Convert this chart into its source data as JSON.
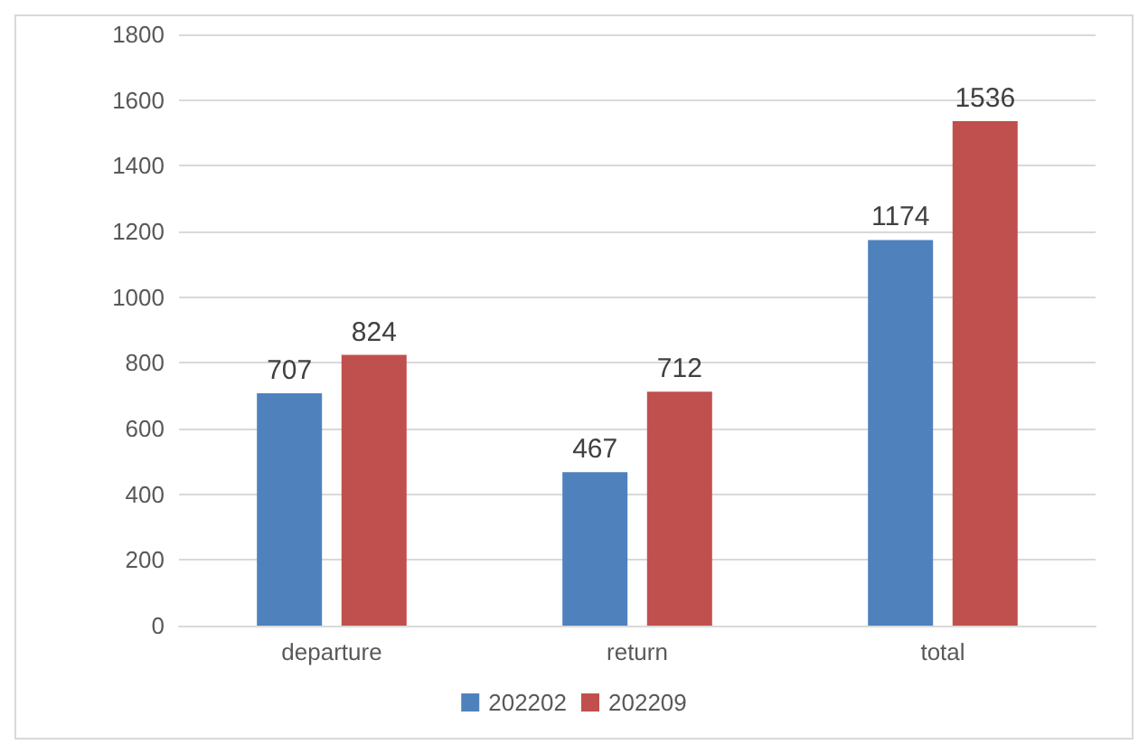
{
  "chart_data": {
    "type": "bar",
    "categories": [
      "departure",
      "return",
      "total"
    ],
    "series": [
      {
        "name": "202202",
        "color": "#4f81bd",
        "values": [
          707,
          467,
          1174
        ]
      },
      {
        "name": "202209",
        "color": "#c0504d",
        "values": [
          824,
          712,
          1536
        ]
      }
    ],
    "ylim": [
      0,
      1800
    ],
    "yticks": [
      0,
      200,
      400,
      600,
      800,
      1000,
      1200,
      1400,
      1600,
      1800
    ],
    "grid": "y",
    "legend": "bottom",
    "data_labels": true
  }
}
